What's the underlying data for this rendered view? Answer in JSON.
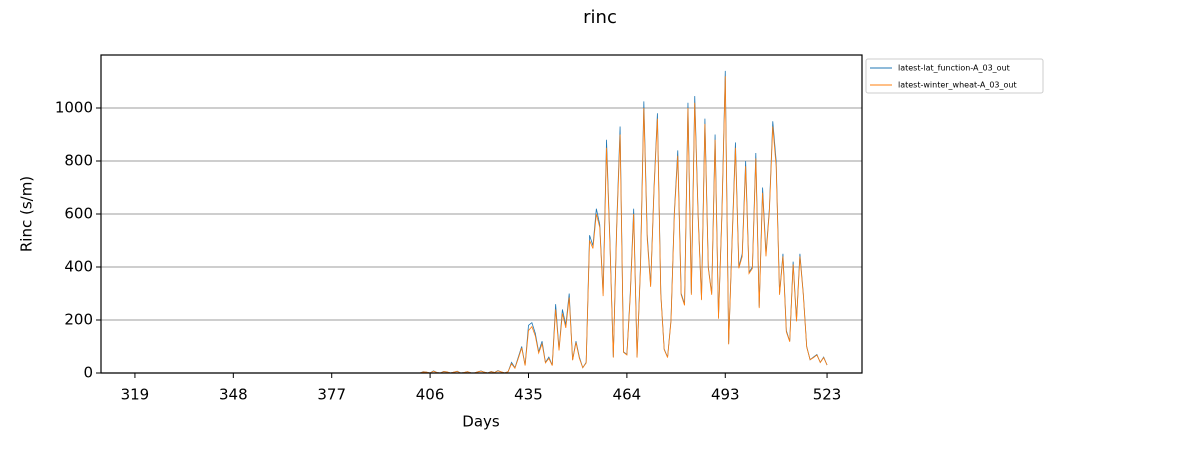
{
  "chart_data": {
    "type": "line",
    "title": "rinc",
    "xlabel": "Days",
    "ylabel": "Rinc (s/m)",
    "xlim": [
      309,
      533.3
    ],
    "ylim": [
      0,
      1200
    ],
    "xticks": [
      319,
      348,
      377,
      406,
      435,
      464,
      493,
      523
    ],
    "yticks": [
      0,
      200,
      400,
      600,
      800,
      1000
    ],
    "grid": "y",
    "legend": "outside upper right",
    "x": [
      403,
      404,
      405,
      406,
      407,
      408,
      409,
      410,
      411,
      412,
      413,
      414,
      415,
      416,
      417,
      418,
      419,
      420,
      421,
      422,
      423,
      424,
      425,
      426,
      427,
      428,
      429,
      430,
      431,
      432,
      433,
      434,
      435,
      436,
      437,
      438,
      439,
      440,
      441,
      442,
      443,
      444,
      445,
      446,
      447,
      448,
      449,
      450,
      451,
      452,
      453,
      454,
      455,
      456,
      457,
      458,
      459,
      460,
      461,
      462,
      463,
      464,
      465,
      466,
      467,
      468,
      469,
      470,
      471,
      472,
      473,
      474,
      475,
      476,
      477,
      478,
      479,
      480,
      481,
      482,
      483,
      484,
      485,
      486,
      487,
      488,
      489,
      490,
      491,
      492,
      493,
      494,
      495,
      496,
      497,
      498,
      499,
      500,
      501,
      502,
      503,
      504,
      505,
      506,
      507,
      508,
      509,
      510,
      511,
      512,
      513,
      514,
      515,
      516,
      517,
      518,
      519,
      520,
      521,
      522,
      523
    ],
    "series": [
      {
        "name": "latest-lat_function-A_03_out",
        "color": "#1f77b4",
        "values": [
          0,
          5,
          3,
          0,
          8,
          2,
          0,
          6,
          4,
          0,
          3,
          7,
          0,
          2,
          5,
          1,
          0,
          4,
          8,
          3,
          0,
          6,
          2,
          9,
          4,
          0,
          5,
          40,
          20,
          60,
          100,
          30,
          180,
          190,
          150,
          80,
          120,
          40,
          60,
          30,
          260,
          90,
          240,
          180,
          300,
          50,
          120,
          60,
          20,
          40,
          520,
          480,
          620,
          560,
          300,
          880,
          500,
          60,
          560,
          930,
          80,
          70,
          300,
          620,
          60,
          400,
          1025,
          520,
          330,
          700,
          980,
          300,
          90,
          60,
          200,
          610,
          840,
          300,
          260,
          1020,
          300,
          1045,
          600,
          280,
          960,
          400,
          300,
          900,
          210,
          600,
          1140,
          110,
          500,
          870,
          400,
          450,
          800,
          380,
          400,
          830,
          250,
          700,
          450,
          620,
          950,
          800,
          300,
          450,
          160,
          120,
          420,
          200,
          450,
          300,
          100,
          50,
          60,
          70,
          40,
          60,
          30
        ]
      },
      {
        "name": "latest-winter_wheat-A_03_out",
        "color": "#ff7f0e",
        "values": [
          0,
          4,
          3,
          0,
          7,
          2,
          0,
          5,
          4,
          0,
          3,
          6,
          0,
          2,
          5,
          1,
          0,
          4,
          7,
          3,
          0,
          5,
          2,
          8,
          4,
          0,
          5,
          35,
          18,
          55,
          95,
          28,
          160,
          175,
          140,
          75,
          110,
          38,
          55,
          28,
          240,
          85,
          225,
          170,
          285,
          48,
          115,
          55,
          20,
          38,
          500,
          470,
          600,
          550,
          290,
          850,
          490,
          58,
          545,
          900,
          78,
          68,
          290,
          600,
          58,
          390,
          1000,
          505,
          325,
          690,
          960,
          295,
          88,
          58,
          195,
          600,
          820,
          295,
          255,
          1000,
          295,
          1020,
          590,
          275,
          940,
          395,
          295,
          880,
          205,
          590,
          1120,
          108,
          490,
          850,
          395,
          440,
          780,
          375,
          395,
          810,
          245,
          680,
          440,
          610,
          930,
          780,
          295,
          440,
          155,
          118,
          410,
          195,
          440,
          295,
          98,
          50,
          58,
          68,
          40,
          58,
          30
        ]
      }
    ]
  }
}
